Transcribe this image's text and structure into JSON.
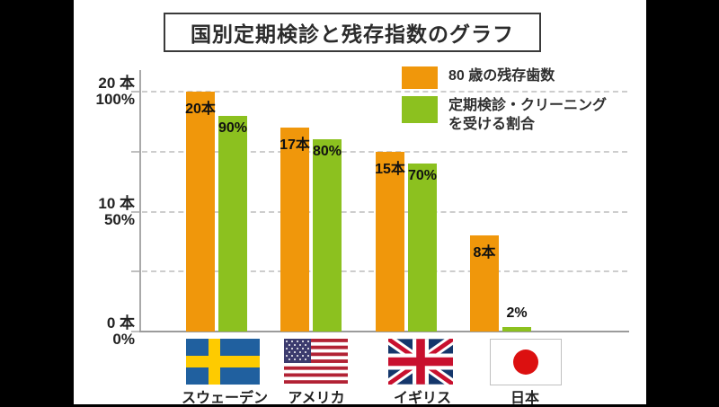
{
  "title": "国別定期検診と残存指数のグラフ",
  "legend": {
    "items": [
      {
        "label": "80 歳の残存歯数",
        "color": "#F0970B"
      },
      {
        "label": "定期検診・クリーニング\nを受ける割合",
        "color": "#8CC11F"
      }
    ]
  },
  "axis_left": {
    "ticks": [
      {
        "lines": [
          "20 本",
          "100%"
        ],
        "percent": 100
      },
      {
        "lines": [
          "10 本",
          "50%"
        ],
        "percent": 50
      },
      {
        "lines": [
          "0 本",
          "0%"
        ],
        "percent": 0
      }
    ]
  },
  "colors": {
    "teeth_bar": "#F0970B",
    "ratio_bar": "#8CC11F",
    "gridline": "#cdcdcd",
    "axis": "#a9a9a9"
  },
  "chart_data": {
    "type": "bar",
    "title": "国別定期検診と残存指数のグラフ",
    "categories": [
      "スウェーデン",
      "アメリカ",
      "イギリス",
      "日本"
    ],
    "series": [
      {
        "name": "80 歳の残存歯数",
        "unit": "本",
        "scale_max": 20,
        "values": [
          20,
          17,
          15,
          8
        ],
        "labels": [
          "20本",
          "17本",
          "15本",
          "8本"
        ],
        "color": "#F0970B"
      },
      {
        "name": "定期検診・クリーニングを受ける割合",
        "unit": "%",
        "scale_max": 100,
        "values": [
          90,
          80,
          70,
          2
        ],
        "labels": [
          "90%",
          "80%",
          "70%",
          "2%"
        ],
        "color": "#8CC11F"
      }
    ],
    "dual_axis_note": "left axis shows teeth count 0-20本 aligned with percent 0-100%",
    "ylim_teeth": [
      0,
      20
    ],
    "ylim_percent": [
      0,
      100
    ],
    "gridlines_percent": [
      25,
      50,
      75,
      100
    ],
    "grid_style": "dashed",
    "legend_position": "top-right",
    "flags": [
      "sweden-flag",
      "usa-flag",
      "uk-flag",
      "japan-flag"
    ]
  }
}
